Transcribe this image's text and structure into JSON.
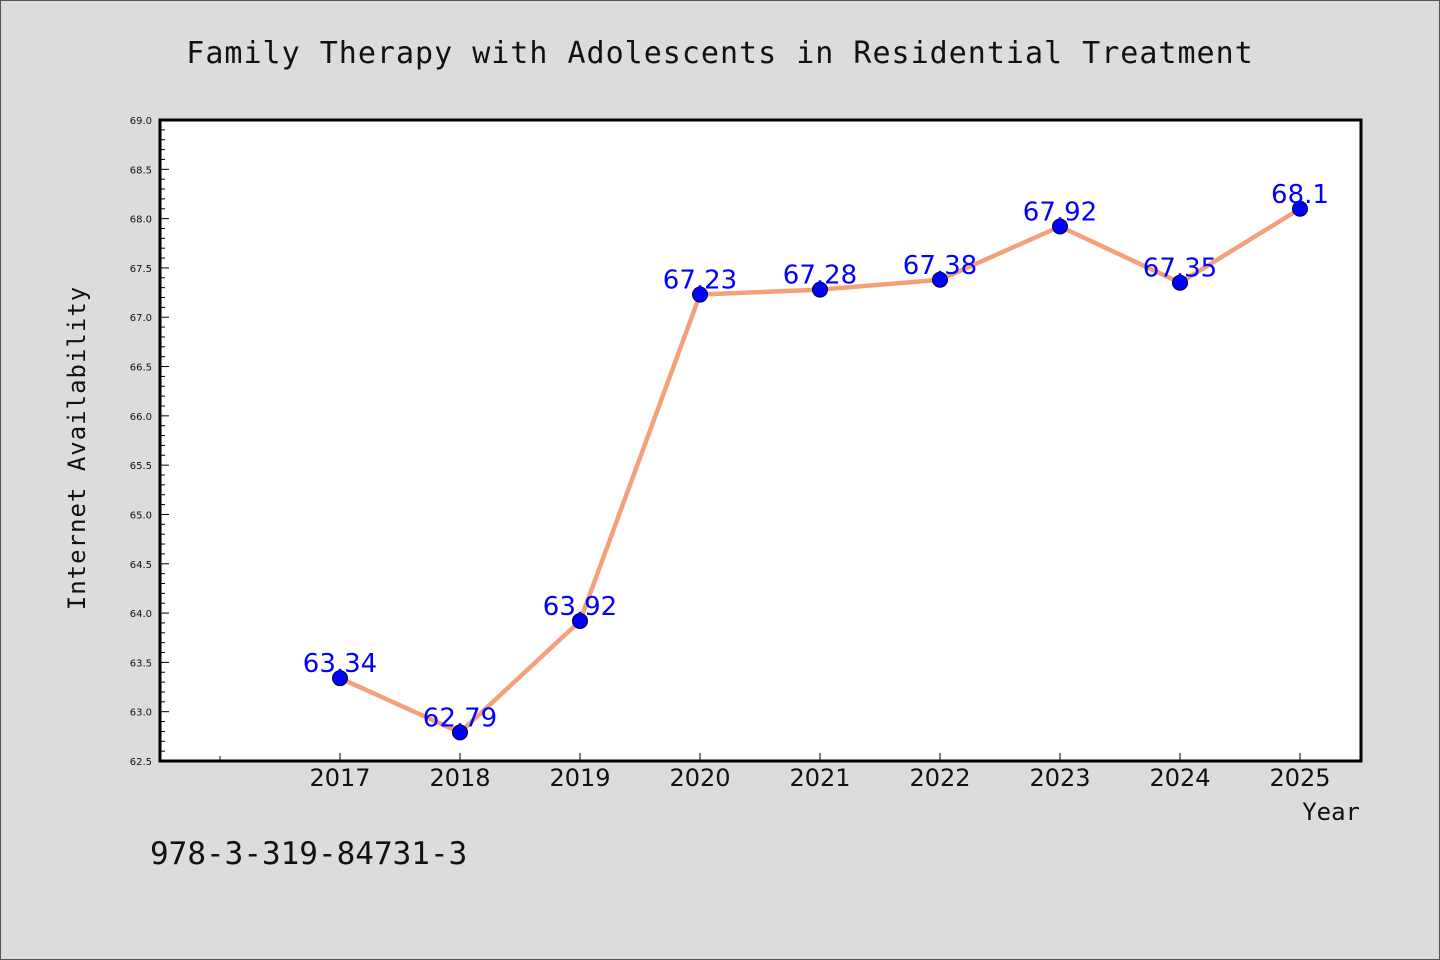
{
  "chart_data": {
    "type": "line",
    "title": "Family Therapy with Adolescents in Residential Treatment",
    "xlabel": "Year",
    "ylabel": "Internet Availability",
    "categories": [
      "2017",
      "2018",
      "2019",
      "2020",
      "2021",
      "2022",
      "2023",
      "2024",
      "2025"
    ],
    "series": [
      {
        "values": [
          63.34,
          62.79,
          63.92,
          67.23,
          67.28,
          67.38,
          67.92,
          67.35,
          68.1
        ]
      }
    ],
    "data_labels": [
      "63.34",
      "62.79",
      "63.92",
      "67.23",
      "67.28",
      "67.38",
      "67.92",
      "67.35",
      "68.1"
    ],
    "ylim": [
      62.5,
      69.0
    ],
    "y_ticks": [
      "62.5",
      "63.0",
      "63.5",
      "64.0",
      "64.5",
      "65.0",
      "65.5",
      "66.0",
      "66.5",
      "67.0",
      "67.5",
      "68.0",
      "68.5",
      "69.0"
    ],
    "grid": false,
    "colors": {
      "line": "#f4a07a",
      "marker": "#0000ff",
      "label": "#0000ff",
      "background": "#dcdcdc",
      "plot": "#ffffff"
    }
  },
  "annotation": {
    "isbn": "978-3-319-84731-3"
  }
}
